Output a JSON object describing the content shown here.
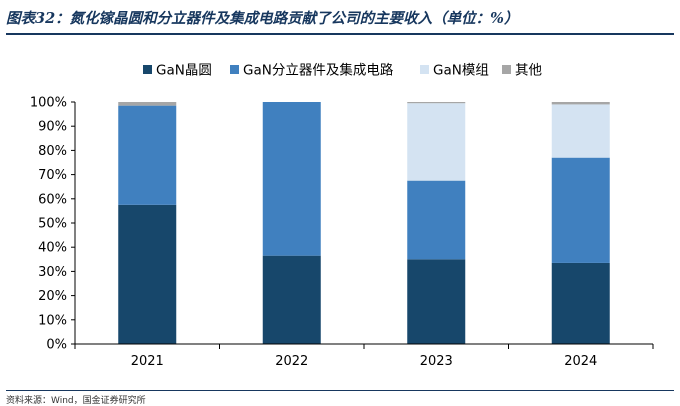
{
  "title": "图表32：氮化镓晶圆和分立器件及集成电路贡献了公司的主要收入（单位：%）",
  "source": "资料来源：Wind，国金证券研究所",
  "chart_data": {
    "type": "bar",
    "stacked": true,
    "categories": [
      "2021",
      "2022",
      "2023",
      "2024"
    ],
    "series": [
      {
        "name": "GaN晶圆",
        "color": "#17476b",
        "values": [
          57.5,
          36.5,
          35,
          33.5
        ]
      },
      {
        "name": "GaN分立器件及集成电路",
        "color": "#4080bf",
        "values": [
          41,
          63.5,
          32.5,
          43.5
        ]
      },
      {
        "name": "GaN模组",
        "color": "#d4e3f2",
        "values": [
          0,
          0,
          32,
          22
        ]
      },
      {
        "name": "其他",
        "color": "#a6a6a6",
        "values": [
          1.5,
          0,
          0.5,
          1
        ]
      }
    ],
    "ylim": [
      0,
      100
    ],
    "yticks": [
      "0%",
      "10%",
      "20%",
      "30%",
      "40%",
      "50%",
      "60%",
      "70%",
      "80%",
      "90%",
      "100%"
    ],
    "legend_position": "top"
  }
}
